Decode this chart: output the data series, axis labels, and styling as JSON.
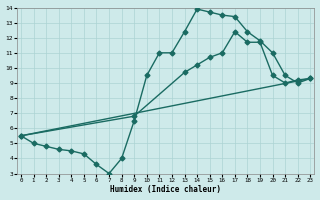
{
  "bg_color": "#ceeaea",
  "grid_color": "#acd4d4",
  "line_color": "#1a6b62",
  "line1_x": [
    0,
    1,
    2,
    3,
    4,
    5,
    6,
    7,
    8,
    9,
    10,
    11,
    12,
    13,
    14,
    15,
    16,
    17,
    18,
    19,
    20,
    21,
    22,
    23
  ],
  "line1_y": [
    5.5,
    5.0,
    4.8,
    4.6,
    4.5,
    4.3,
    3.6,
    3.0,
    4.0,
    6.5,
    9.5,
    11.0,
    11.0,
    12.4,
    13.9,
    13.7,
    13.5,
    13.4,
    12.4,
    11.8,
    11.0,
    9.5,
    9.0,
    9.3
  ],
  "line2_x": [
    0,
    9,
    13,
    14,
    15,
    16,
    17,
    18,
    19,
    20,
    21,
    22,
    23
  ],
  "line2_y": [
    5.5,
    6.8,
    9.7,
    10.2,
    10.7,
    11.0,
    12.4,
    11.7,
    11.7,
    9.5,
    9.0,
    9.2,
    9.3
  ],
  "line3_x": [
    0,
    23
  ],
  "line3_y": [
    5.5,
    9.3
  ],
  "xlim": [
    0,
    23
  ],
  "ylim": [
    3,
    14
  ],
  "yticks": [
    3,
    4,
    5,
    6,
    7,
    8,
    9,
    10,
    11,
    12,
    13,
    14
  ],
  "xticks": [
    0,
    1,
    2,
    3,
    4,
    5,
    6,
    7,
    8,
    9,
    10,
    11,
    12,
    13,
    14,
    15,
    16,
    17,
    18,
    19,
    20,
    21,
    22,
    23
  ],
  "xlabel": "Humidex (Indice chaleur)",
  "marker": "D",
  "markersize": 2.5,
  "linewidth": 1.0
}
